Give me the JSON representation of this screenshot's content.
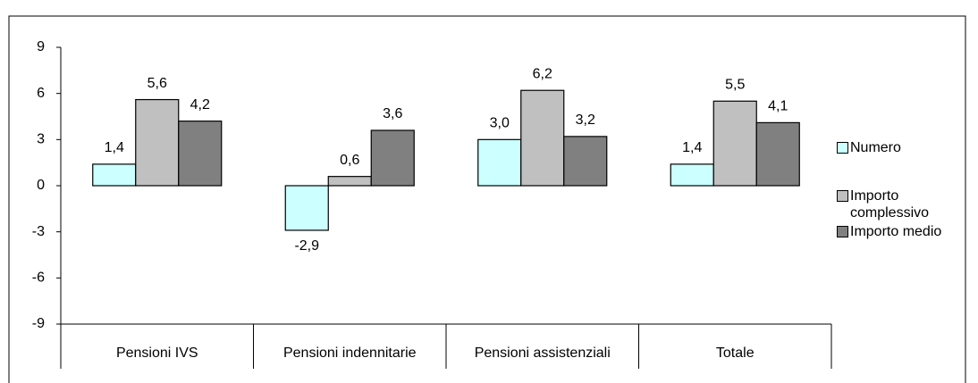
{
  "chart_data": {
    "type": "bar",
    "categories": [
      "Pensioni IVS",
      "Pensioni indennitarie",
      "Pensioni assistenziali",
      "Totale"
    ],
    "series": [
      {
        "name": "Numero",
        "color": "#ccffff",
        "values": [
          1.4,
          -2.9,
          3.0,
          1.4
        ],
        "value_labels": [
          "1,4",
          "-2,9",
          "3,0",
          "1,4"
        ]
      },
      {
        "name": "Importo complessivo",
        "color": "#c0c0c0",
        "values": [
          5.6,
          0.6,
          6.2,
          5.5
        ],
        "value_labels": [
          "5,6",
          "0,6",
          "6,2",
          "5,5"
        ]
      },
      {
        "name": "Importo medio",
        "color": "#808080",
        "values": [
          4.2,
          3.6,
          3.2,
          4.1
        ],
        "value_labels": [
          "4,2",
          "3,6",
          "3,2",
          "4,1"
        ]
      }
    ],
    "ylim": [
      -9,
      9
    ],
    "yticks": [
      -9,
      -6,
      -3,
      0,
      3,
      6,
      9
    ],
    "grid": false,
    "legend": "right"
  }
}
